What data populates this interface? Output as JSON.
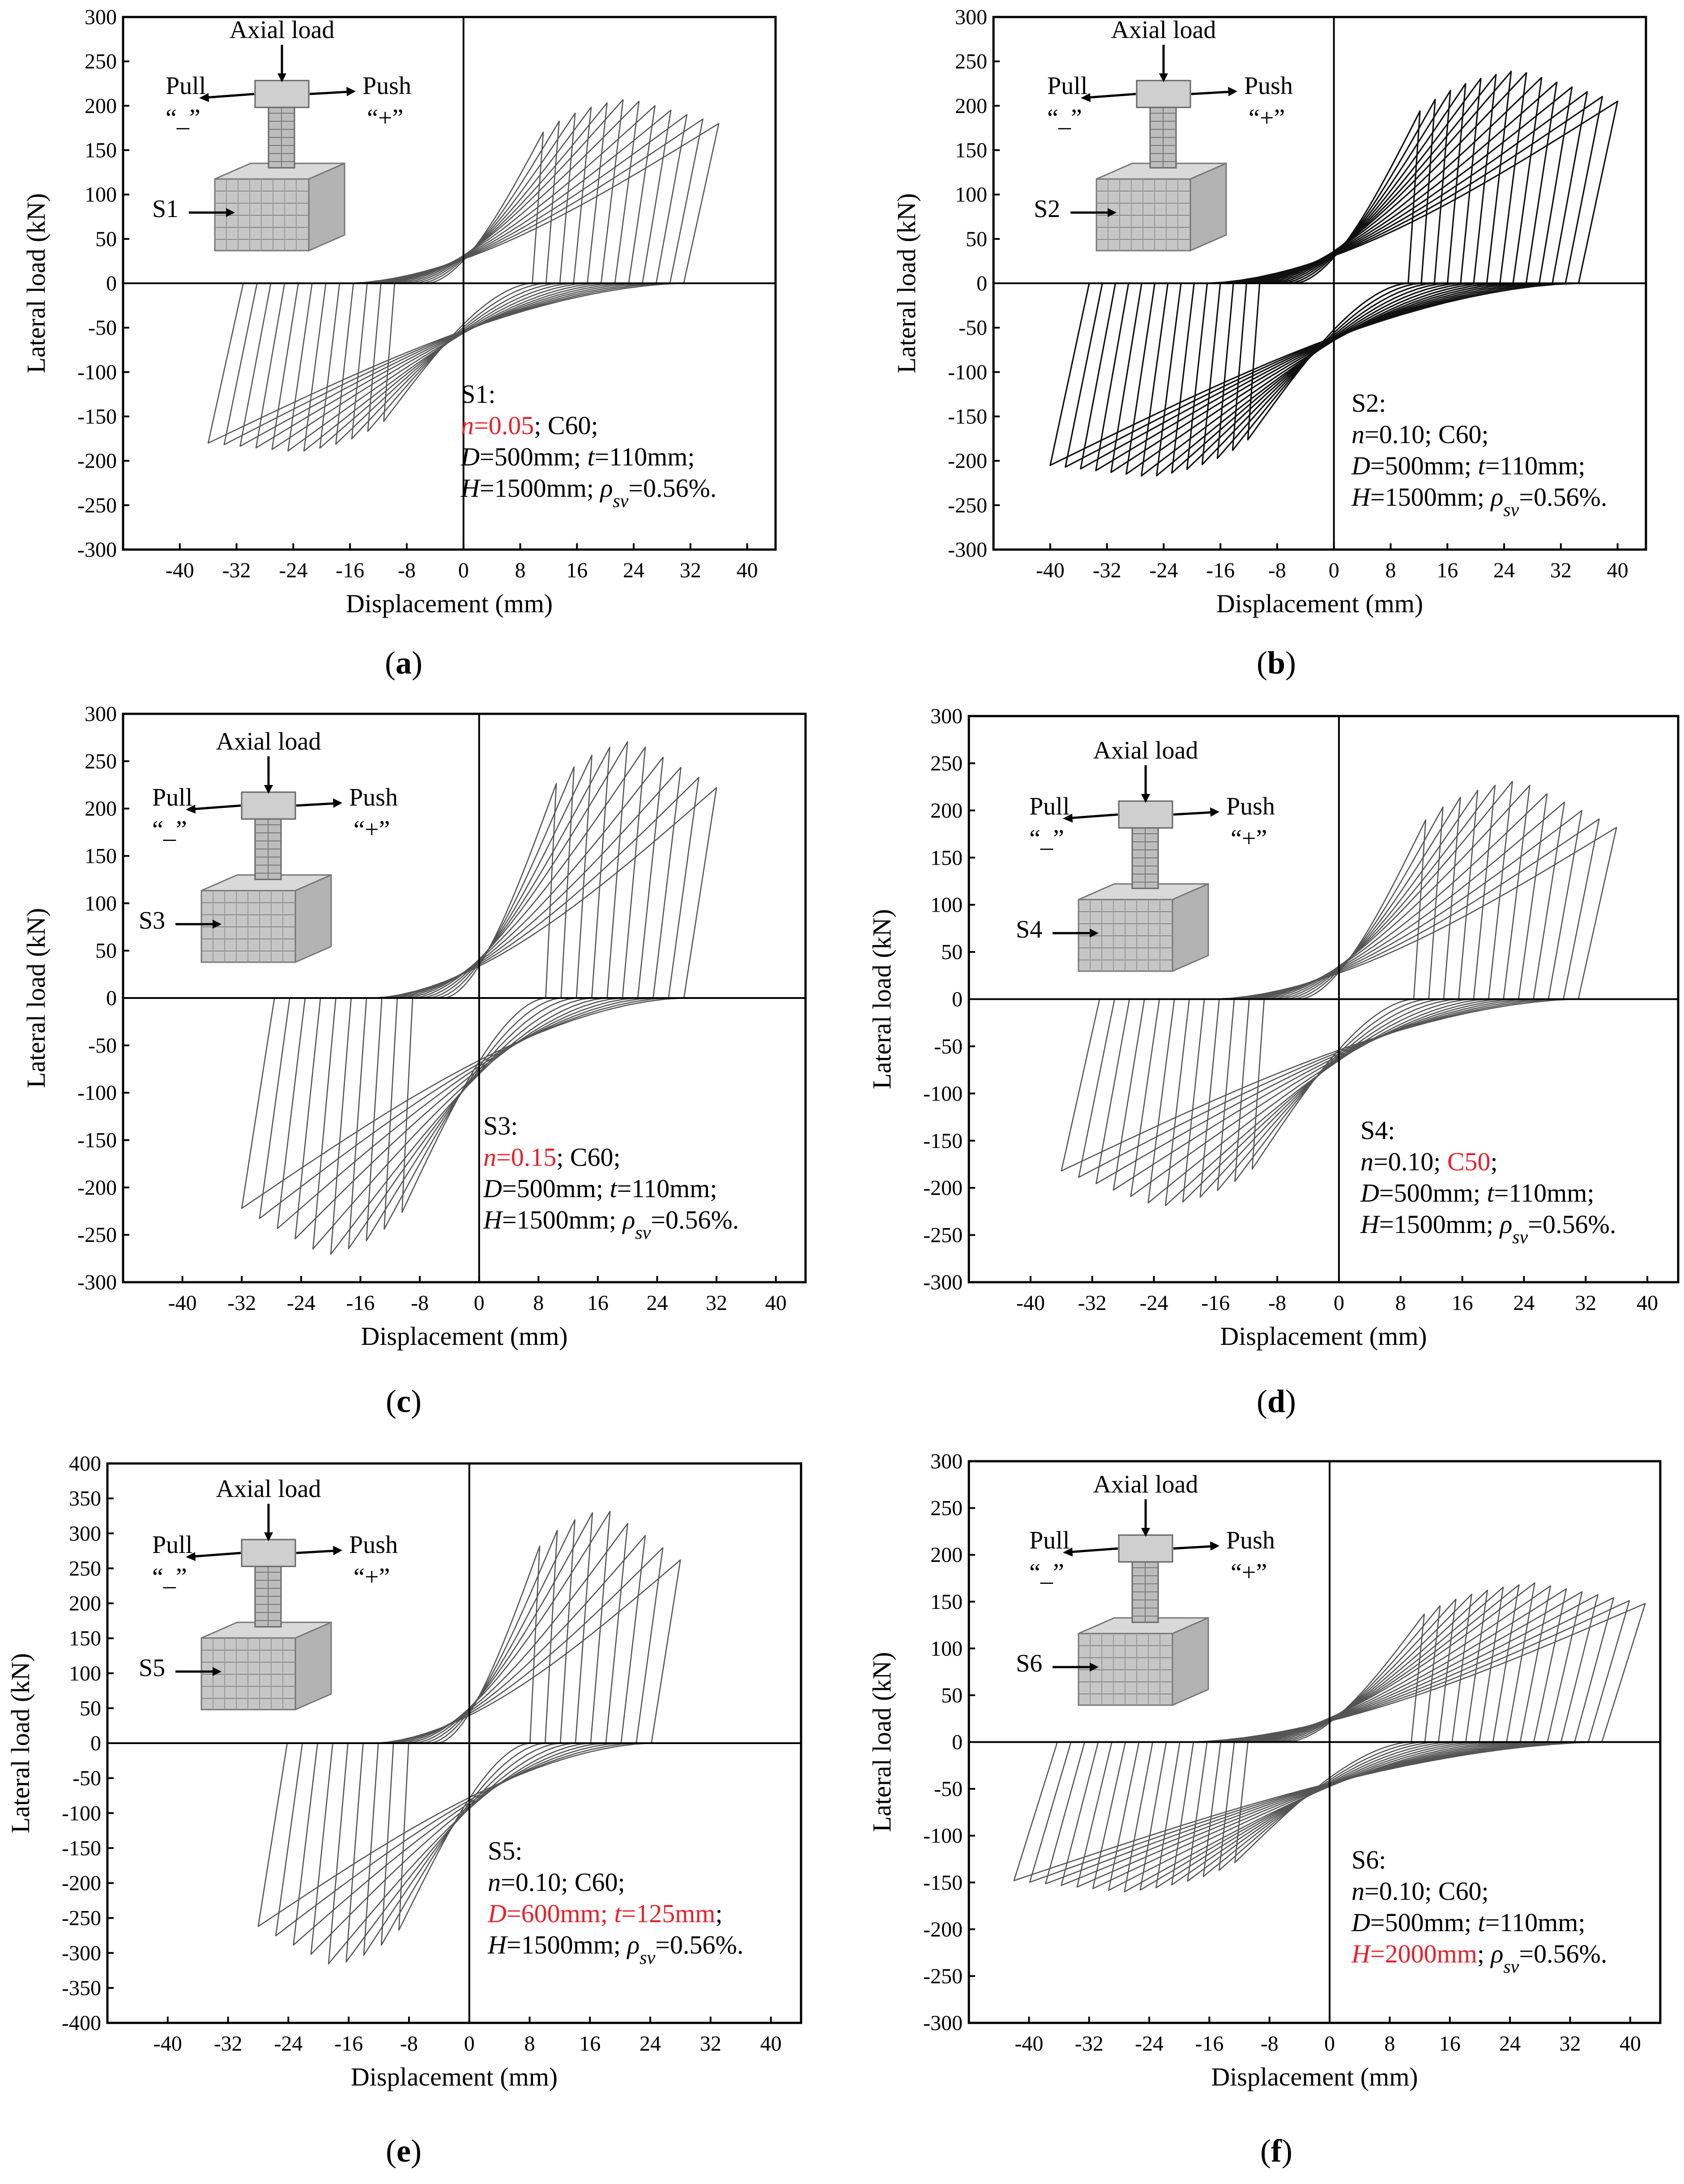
{
  "panel_labels": [
    "(a)",
    "(b)",
    "(c)",
    "(d)",
    "(e)",
    "(f)"
  ],
  "schematic_labels": {
    "axial": "Axial load",
    "pull": "Pull",
    "push": "Push",
    "minus": "“_”",
    "plus": "“+”"
  },
  "colors": {
    "highlight": "#e8212a",
    "curve": "#555555",
    "curve_dark": "#111111",
    "axis": "#000000"
  },
  "chart_data": [
    {
      "type": "line",
      "id": "S1",
      "xlabel": "Displacement (mm)",
      "ylabel": "Lateral load (kN)",
      "xlim": [
        -48,
        44
      ],
      "ylim": [
        -300,
        300
      ],
      "xticks": [
        -40,
        -32,
        -24,
        -16,
        -8,
        0,
        8,
        16,
        24,
        32,
        40
      ],
      "yticks": [
        -300,
        -250,
        -200,
        -150,
        -100,
        -50,
        0,
        50,
        100,
        150,
        200,
        250,
        300
      ],
      "cycles": 12,
      "max_disp": 36,
      "peak_pos": 208,
      "peak_neg": -190,
      "end_load": 180,
      "dark": false,
      "specimen": "S1",
      "annotation": [
        [
          {
            "t": "S1:"
          }
        ],
        [
          {
            "t": "n",
            "i": true,
            "r": true
          },
          {
            "t": "=0.05",
            "r": true
          },
          {
            "t": "; C60;"
          }
        ],
        [
          {
            "t": "D",
            "i": true
          },
          {
            "t": "=500mm; "
          },
          {
            "t": "t",
            "i": true
          },
          {
            "t": "=110mm;"
          }
        ],
        [
          {
            "t": "H",
            "i": true
          },
          {
            "t": "=1500mm; "
          },
          {
            "t": "ρ",
            "i": true
          },
          {
            "t": "sv",
            "i": true,
            "sub": true
          },
          {
            "t": "=0.56%."
          }
        ]
      ]
    },
    {
      "type": "line",
      "id": "S2",
      "xlabel": "Displacement (mm)",
      "ylabel": "Lateral load (kN)",
      "xlim": [
        -48,
        44
      ],
      "ylim": [
        -300,
        300
      ],
      "xticks": [
        -40,
        -32,
        -24,
        -16,
        -8,
        0,
        8,
        16,
        24,
        32,
        40
      ],
      "yticks": [
        -300,
        -250,
        -200,
        -150,
        -100,
        -50,
        0,
        50,
        100,
        150,
        200,
        250,
        300
      ],
      "cycles": 14,
      "max_disp": 40,
      "peak_pos": 240,
      "peak_neg": -218,
      "end_load": 205,
      "dark": true,
      "specimen": "S2",
      "annotation": [
        [
          {
            "t": "S2:"
          }
        ],
        [
          {
            "t": "n",
            "i": true
          },
          {
            "t": "=0.10; C60;"
          }
        ],
        [
          {
            "t": "D",
            "i": true
          },
          {
            "t": "=500mm; "
          },
          {
            "t": "t",
            "i": true
          },
          {
            "t": "=110mm;"
          }
        ],
        [
          {
            "t": "H",
            "i": true
          },
          {
            "t": "=1500mm; "
          },
          {
            "t": "ρ",
            "i": true
          },
          {
            "t": "sv",
            "i": true,
            "sub": true
          },
          {
            "t": "=0.56%."
          }
        ]
      ]
    },
    {
      "type": "line",
      "id": "S3",
      "xlabel": "Displacement (mm)",
      "ylabel": "Lateral load (kN)",
      "xlim": [
        -48,
        44
      ],
      "ylim": [
        -300,
        300
      ],
      "xticks": [
        -40,
        -32,
        -24,
        -16,
        -8,
        0,
        8,
        16,
        24,
        32,
        40
      ],
      "yticks": [
        -300,
        -250,
        -200,
        -150,
        -100,
        -50,
        0,
        50,
        100,
        150,
        200,
        250,
        300
      ],
      "cycles": 10,
      "max_disp": 32,
      "peak_pos": 272,
      "peak_neg": -272,
      "end_load": 222,
      "dark": false,
      "specimen": "S3",
      "annotation": [
        [
          {
            "t": "S3:"
          }
        ],
        [
          {
            "t": "n",
            "i": true,
            "r": true
          },
          {
            "t": "=0.15",
            "r": true
          },
          {
            "t": "; C60;"
          }
        ],
        [
          {
            "t": "D",
            "i": true
          },
          {
            "t": "=500mm; "
          },
          {
            "t": "t",
            "i": true
          },
          {
            "t": "=110mm;"
          }
        ],
        [
          {
            "t": "H",
            "i": true
          },
          {
            "t": "=1500mm; "
          },
          {
            "t": "ρ",
            "i": true
          },
          {
            "t": "sv",
            "i": true,
            "sub": true
          },
          {
            "t": "=0.56%."
          }
        ]
      ]
    },
    {
      "type": "line",
      "id": "S4",
      "xlabel": "Displacement (mm)",
      "ylabel": "Lateral load (kN)",
      "xlim": [
        -48,
        44
      ],
      "ylim": [
        -300,
        300
      ],
      "xticks": [
        -40,
        -32,
        -24,
        -16,
        -8,
        0,
        8,
        16,
        24,
        32,
        40
      ],
      "yticks": [
        -300,
        -250,
        -200,
        -150,
        -100,
        -50,
        0,
        50,
        100,
        150,
        200,
        250,
        300
      ],
      "cycles": 12,
      "max_disp": 36,
      "peak_pos": 232,
      "peak_neg": -220,
      "end_load": 182,
      "dark": false,
      "specimen": "S4",
      "annotation": [
        [
          {
            "t": "S4:"
          }
        ],
        [
          {
            "t": "n",
            "i": true
          },
          {
            "t": "=0.10; "
          },
          {
            "t": "C50",
            "r": true
          },
          {
            "t": ";"
          }
        ],
        [
          {
            "t": "D",
            "i": true
          },
          {
            "t": "=500mm; "
          },
          {
            "t": "t",
            "i": true
          },
          {
            "t": "=110mm;"
          }
        ],
        [
          {
            "t": "H",
            "i": true
          },
          {
            "t": "=1500mm; "
          },
          {
            "t": "ρ",
            "i": true
          },
          {
            "t": "sv",
            "i": true,
            "sub": true
          },
          {
            "t": "=0.56%."
          }
        ]
      ]
    },
    {
      "type": "line",
      "id": "S5",
      "xlabel": "Displacement (mm)",
      "ylabel": "Lateral load (kN)",
      "xlim": [
        -48,
        44
      ],
      "ylim": [
        -400,
        400
      ],
      "xticks": [
        -40,
        -32,
        -24,
        -16,
        -8,
        0,
        8,
        16,
        24,
        32,
        40
      ],
      "yticks": [
        -400,
        -350,
        -300,
        -250,
        -200,
        -150,
        -100,
        -50,
        0,
        50,
        100,
        150,
        200,
        250,
        300,
        350,
        400
      ],
      "cycles": 9,
      "max_disp": 28,
      "peak_pos": 335,
      "peak_neg": -318,
      "end_load": 262,
      "dark": false,
      "specimen": "S5",
      "annotation": [
        [
          {
            "t": "S5:"
          }
        ],
        [
          {
            "t": "n",
            "i": true
          },
          {
            "t": "=0.10; C60;"
          }
        ],
        [
          {
            "t": "D",
            "i": true,
            "r": true
          },
          {
            "t": "=600mm; ",
            "r": true
          },
          {
            "t": "t",
            "i": true,
            "r": true
          },
          {
            "t": "=125mm",
            "r": true
          },
          {
            "t": ";"
          }
        ],
        [
          {
            "t": "H",
            "i": true
          },
          {
            "t": "=1500mm; "
          },
          {
            "t": "ρ",
            "i": true
          },
          {
            "t": "sv",
            "i": true,
            "sub": true
          },
          {
            "t": "=0.56%."
          }
        ]
      ]
    },
    {
      "type": "line",
      "id": "S6",
      "xlabel": "Displacement (mm)",
      "ylabel": "Lateral load (kN)",
      "xlim": [
        -48,
        44
      ],
      "ylim": [
        -300,
        300
      ],
      "xticks": [
        -40,
        -32,
        -24,
        -16,
        -8,
        0,
        8,
        16,
        24,
        32,
        40
      ],
      "yticks": [
        -300,
        -250,
        -200,
        -150,
        -100,
        -50,
        0,
        50,
        100,
        150,
        200,
        250,
        300
      ],
      "cycles": 15,
      "max_disp": 42,
      "peak_pos": 170,
      "peak_neg": -160,
      "end_load": 148,
      "dark": false,
      "specimen": "S6",
      "annotation": [
        [
          {
            "t": "S6:"
          }
        ],
        [
          {
            "t": "n",
            "i": true
          },
          {
            "t": "=0.10; C60;"
          }
        ],
        [
          {
            "t": "D",
            "i": true
          },
          {
            "t": "=500mm; "
          },
          {
            "t": "t",
            "i": true
          },
          {
            "t": "=110mm;"
          }
        ],
        [
          {
            "t": "H",
            "i": true,
            "r": true
          },
          {
            "t": "=2000mm",
            "r": true
          },
          {
            "t": "; "
          },
          {
            "t": "ρ",
            "i": true
          },
          {
            "t": "sv",
            "i": true,
            "sub": true
          },
          {
            "t": "=0.56%."
          }
        ]
      ]
    }
  ]
}
